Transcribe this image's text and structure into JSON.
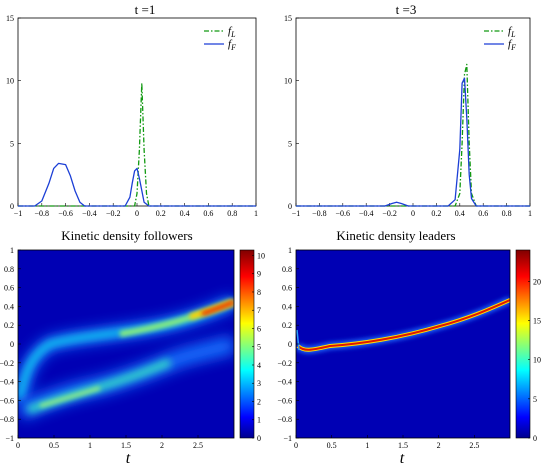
{
  "chart_data": [
    {
      "type": "line",
      "title": "t =1",
      "xlim": [
        -1,
        1
      ],
      "ylim": [
        0,
        15
      ],
      "xticks": [
        "−1",
        "−0.8",
        "−0.6",
        "−0.4",
        "−0.2",
        "0",
        "0.2",
        "0.4",
        "0.6",
        "0.8",
        "1"
      ],
      "yticks": [
        "0",
        "5",
        "10",
        "15"
      ],
      "legend": "top-right",
      "series": [
        {
          "name": "f_L",
          "label_base": "f",
          "label_sub": "L",
          "style": "dash-dot",
          "color": "#119911",
          "x": [
            -1,
            -0.02,
            0,
            0.02,
            0.04,
            0.06,
            0.08,
            0.1,
            1
          ],
          "y": [
            0,
            0,
            1.0,
            4.5,
            9.8,
            4.5,
            1.0,
            0,
            0
          ]
        },
        {
          "name": "f_F",
          "label_base": "f",
          "label_sub": "F",
          "style": "solid",
          "color": "#1c3fd6",
          "x": [
            -1,
            -0.86,
            -0.8,
            -0.74,
            -0.7,
            -0.66,
            -0.6,
            -0.56,
            -0.52,
            -0.48,
            -0.44,
            -0.2,
            -0.1,
            -0.06,
            -0.04,
            -0.02,
            0,
            0.02,
            0.06,
            0.1,
            1
          ],
          "y": [
            0,
            0,
            0.4,
            1.8,
            3.0,
            3.4,
            3.3,
            2.4,
            1.2,
            0.3,
            0,
            0,
            0,
            0.7,
            1.8,
            2.8,
            3.0,
            2.2,
            0.3,
            0,
            0
          ]
        }
      ]
    },
    {
      "type": "line",
      "title": "t =3",
      "xlim": [
        -1,
        1
      ],
      "ylim": [
        0,
        15
      ],
      "xticks": [
        "−1",
        "−0.8",
        "−0.6",
        "−0.4",
        "−0.2",
        "0",
        "0.2",
        "0.4",
        "0.6",
        "0.8",
        "1"
      ],
      "yticks": [
        "0",
        "5",
        "10",
        "15"
      ],
      "legend": "top-right",
      "series": [
        {
          "name": "f_L",
          "label_base": "f",
          "label_sub": "L",
          "style": "dash-dot",
          "color": "#119911",
          "x": [
            -1,
            0.36,
            0.4,
            0.42,
            0.44,
            0.46,
            0.48,
            0.5,
            0.54,
            1
          ],
          "y": [
            0,
            0,
            1.0,
            5.0,
            10.5,
            11.3,
            5.0,
            1.0,
            0,
            0
          ]
        },
        {
          "name": "f_F",
          "label_base": "f",
          "label_sub": "F",
          "style": "solid",
          "color": "#1c3fd6",
          "x": [
            -1,
            -0.24,
            -0.18,
            -0.14,
            -0.1,
            -0.04,
            0.3,
            0.36,
            0.4,
            0.42,
            0.44,
            0.46,
            0.48,
            0.5,
            0.54,
            1
          ],
          "y": [
            0,
            0,
            0.2,
            0.3,
            0.2,
            0,
            0,
            0.5,
            4.5,
            9.8,
            10.2,
            7.0,
            2.5,
            0.6,
            0,
            0
          ]
        }
      ]
    },
    {
      "type": "heatmap",
      "title": "Kinetic density followers",
      "xlabel": "t",
      "xlim": [
        0,
        3
      ],
      "ylim": [
        -1,
        1
      ],
      "xticks": [
        "0",
        "0.5",
        "1",
        "1.5",
        "2",
        "2.5"
      ],
      "yticks": [
        "1",
        "0.8",
        "0.6",
        "0.4",
        "0.2",
        "0",
        "−0.2",
        "−0.4",
        "−0.6",
        "−0.8",
        "−1"
      ],
      "colorbar_range": [
        0,
        10.3
      ],
      "colorbar_ticks": [
        "10",
        "9",
        "8",
        "7",
        "6",
        "5",
        "4",
        "3",
        "2",
        "1",
        "0"
      ]
    },
    {
      "type": "heatmap",
      "title": "Kinetic density leaders",
      "xlabel": "t",
      "xlim": [
        0,
        3
      ],
      "ylim": [
        -1,
        1
      ],
      "xticks": [
        "0",
        "0.5",
        "1",
        "1.5",
        "2",
        "2.5"
      ],
      "yticks": [
        "1",
        "0.8",
        "0.6",
        "0.4",
        "0.2",
        "0",
        "−0.2",
        "−0.4",
        "−0.6",
        "−0.8",
        "−1"
      ],
      "colorbar_range": [
        0,
        24
      ],
      "colorbar_ticks": [
        "20",
        "15",
        "10",
        "5",
        "0"
      ]
    }
  ]
}
